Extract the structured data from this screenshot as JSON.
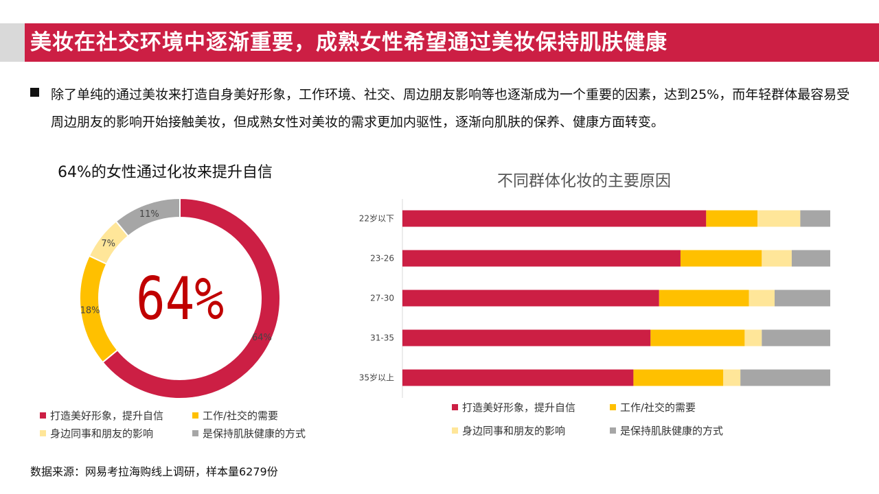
{
  "header": {
    "title": "美妆在社交环境中逐渐重要，成熟女性希望通过美妆保持肌肤健康"
  },
  "bullet": {
    "text": "除了单纯的通过美妆来打造自身美好形象，工作环境、社交、周边朋友影响等也逐渐成为一个重要的因素，达到25%，而年轻群体最容易受周边朋友的影响开始接触美妆，但成熟女性对美妆的需求更加内驱性，逐渐向肌肤的保养、健康方面转变。"
  },
  "footer": {
    "source": "数据来源：网易考拉海购线上调研，样本量6279份"
  },
  "chart_data": [
    {
      "type": "pie",
      "title": "64%的女性通过化妆来提升自信",
      "center_label": "64%",
      "categories": [
        "打造美好形象，提升自信",
        "工作/社交的需要",
        "身边同事和朋友的影响",
        "是保持肌肤健康的方式"
      ],
      "values": [
        64,
        18,
        7,
        11
      ],
      "data_labels": [
        "64%",
        "18%",
        "7%",
        "11%"
      ],
      "colors": [
        "#cc1f44",
        "#ffc000",
        "#ffe699",
        "#a6a6a6"
      ],
      "legend_position": "bottom"
    },
    {
      "type": "bar",
      "orientation": "horizontal",
      "stacked": true,
      "percent_stacked": true,
      "title": "不同群体化妆的主要原因",
      "categories": [
        "22岁以下",
        "23-26",
        "27-30",
        "31-35",
        "35岁以上"
      ],
      "series": [
        {
          "name": "打造美好形象，提升自信",
          "color": "#cc1f44",
          "values": [
            71,
            65,
            60,
            58,
            54
          ]
        },
        {
          "name": "工作/社交的需要",
          "color": "#ffc000",
          "values": [
            12,
            19,
            21,
            22,
            21
          ]
        },
        {
          "name": "身边同事和朋友的影响",
          "color": "#ffe699",
          "values": [
            10,
            7,
            6,
            4,
            4
          ]
        },
        {
          "name": "是保持肌肤健康的方式",
          "color": "#a6a6a6",
          "values": [
            7,
            9,
            13,
            16,
            21
          ]
        }
      ],
      "xlim": [
        0,
        100
      ],
      "grid": false,
      "legend_position": "bottom"
    }
  ]
}
